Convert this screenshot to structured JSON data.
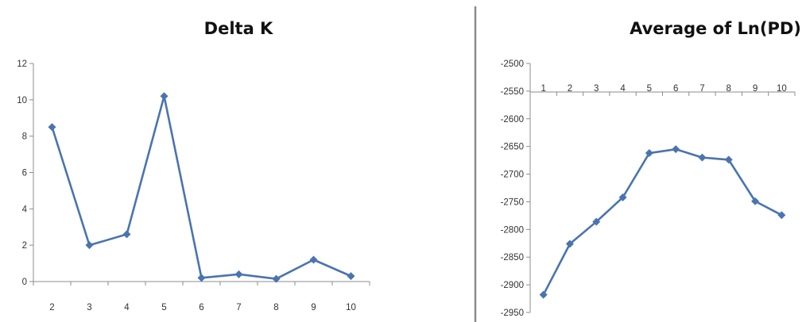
{
  "colors": {
    "series": "#4a74b0",
    "axis": "#8c8c8c",
    "divider": "#8a8a8a",
    "text": "#222222"
  },
  "chart_data": [
    {
      "type": "line",
      "title": "Delta K",
      "xlabel": "",
      "ylabel": "",
      "categories": [
        "2",
        "3",
        "4",
        "5",
        "6",
        "7",
        "8",
        "9",
        "10"
      ],
      "series": [
        {
          "values": [
            8.5,
            2.0,
            2.6,
            10.2,
            0.2,
            0.4,
            0.15,
            1.2,
            0.3
          ]
        }
      ],
      "ylim": [
        0,
        12
      ],
      "yticks": [
        "0",
        "2",
        "4",
        "6",
        "8",
        "10",
        "12"
      ],
      "marker": "diamond",
      "grid": false,
      "legend": "none"
    },
    {
      "type": "line",
      "title": "Average of Ln(PD)",
      "xlabel": "",
      "ylabel": "",
      "categories": [
        "1",
        "2",
        "3",
        "4",
        "5",
        "6",
        "7",
        "8",
        "9",
        "10"
      ],
      "series": [
        {
          "values": [
            -2918,
            -2826,
            -2786,
            -2742,
            -2662,
            -2655,
            -2670,
            -2674,
            -2749,
            -2774
          ]
        }
      ],
      "ylim": [
        -2950,
        -2500
      ],
      "yticks": [
        "-2500",
        "-2550",
        "-2600",
        "-2650",
        "-2700",
        "-2750",
        "-2800",
        "-2850",
        "-2900",
        "-2950"
      ],
      "x_axis_position": "top",
      "marker": "diamond",
      "grid": false,
      "legend": "none"
    }
  ]
}
